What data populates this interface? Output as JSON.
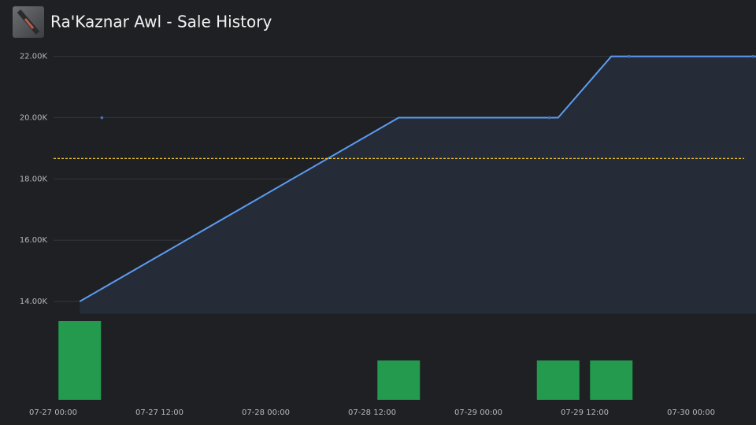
{
  "chart_data": {
    "type": "line",
    "title": "Ra'Kaznar Awl - Sale History",
    "x": [
      "07-27 03:00",
      "07-28 15:00",
      "07-29 09:00",
      "07-29 15:00",
      "07-30 07:20"
    ],
    "values": [
      14000,
      20000,
      20000,
      22000,
      22000
    ],
    "color": "#5b9cf2",
    "sales": {
      "x": [
        "07-27 05:30",
        "07-29 08:00",
        "07-29 17:00",
        "07-30 07:00"
      ],
      "values": [
        20000,
        20000,
        22000,
        22000
      ]
    },
    "average": 18667,
    "average_color": "#e8c12c",
    "volume": {
      "x": [
        "07-27 03:00",
        "07-28 15:00",
        "07-29 09:00",
        "07-29 15:00"
      ],
      "values": [
        2,
        1,
        1,
        1
      ],
      "color": "#239a4e",
      "ylim": [
        0,
        2
      ]
    },
    "xlim": [
      "07-26 18:00",
      "07-30 07:20"
    ],
    "xticks": [
      "07-27 00:00",
      "07-27 12:00",
      "07-28 00:00",
      "07-28 12:00",
      "07-29 00:00",
      "07-29 12:00",
      "07-30 00:00"
    ],
    "ylim": [
      13600,
      22300
    ],
    "yticks": [
      {
        "value": 14000,
        "label": "14.00K"
      },
      {
        "value": 16000,
        "label": "16.00K"
      },
      {
        "value": 18000,
        "label": "18.00K"
      },
      {
        "value": 20000,
        "label": "20.00K"
      },
      {
        "value": 22000,
        "label": "22.00K"
      }
    ],
    "grid": true
  }
}
